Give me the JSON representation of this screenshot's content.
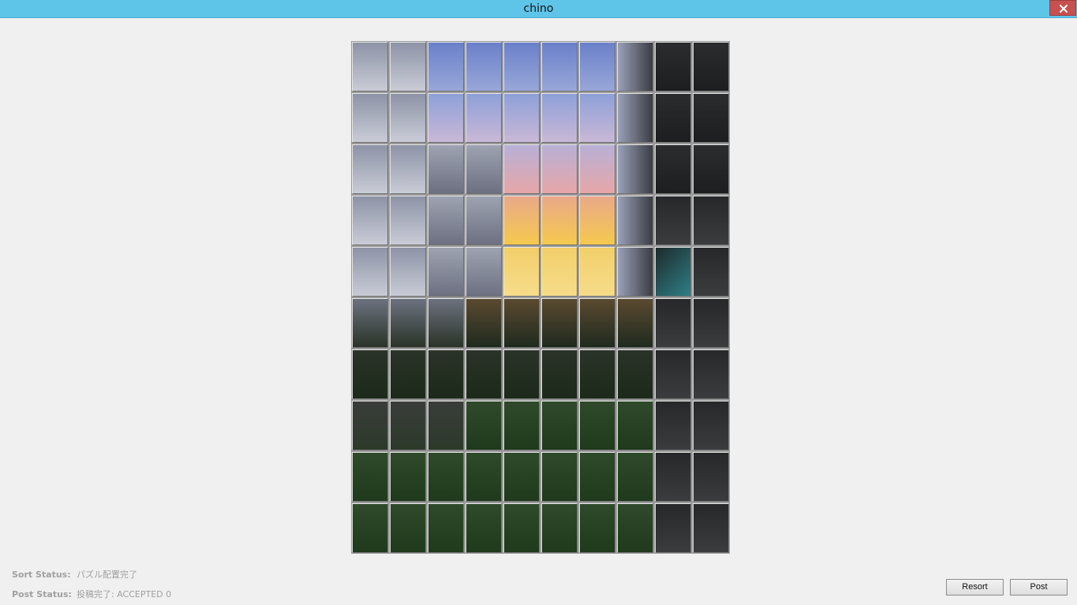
{
  "window": {
    "title": "chino",
    "close_label": "✕"
  },
  "puzzle": {
    "rows": 10,
    "cols": 10
  },
  "status": {
    "sort_label": "Sort Status:",
    "sort_value": "パズル配置完了",
    "post_label": "Post Status:",
    "post_value": "投稿完了: ACCEPTED 0"
  },
  "buttons": {
    "resort_label": "Resort",
    "post_label": "Post"
  },
  "colors": {
    "titlebar": "#5ec5e8",
    "close": "#c75050",
    "background": "#f0f0f0"
  }
}
